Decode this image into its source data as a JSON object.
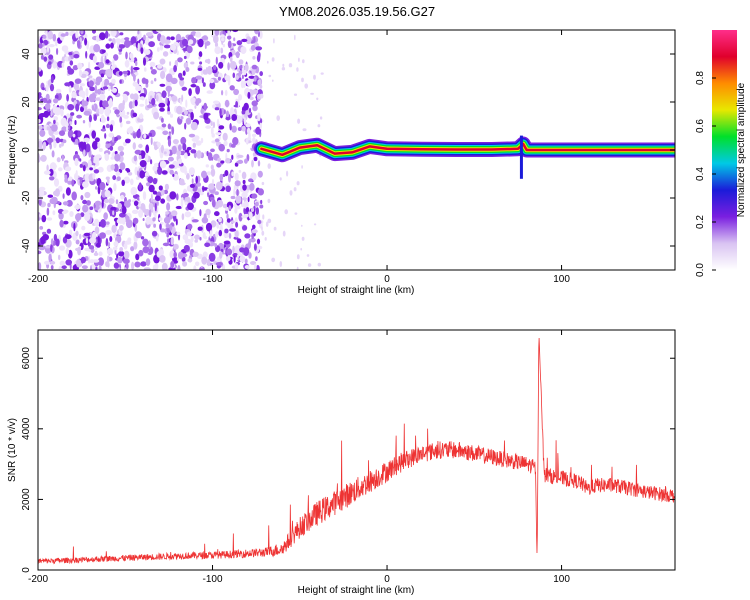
{
  "title": "YM08.2026.035.19.56.G27",
  "chart_data": [
    {
      "type": "heatmap",
      "xlabel": "Height of straight line (km)",
      "ylabel": "Frequency (Hz)",
      "xlim": [
        -200,
        165
      ],
      "ylim": [
        -50,
        50
      ],
      "x_ticks": [
        -200,
        -100,
        0,
        100
      ],
      "y_ticks": [
        -40,
        -20,
        0,
        20,
        40
      ],
      "colorbar": {
        "label": "Normalized spectral amplitude",
        "range": [
          0,
          1
        ],
        "ticks": [
          0.0,
          0.2,
          0.4,
          0.6,
          0.8
        ],
        "tick_labels": [
          "0.0",
          "0.2",
          "0.4",
          "0.6",
          "0.8"
        ],
        "colormap": [
          "#ffffff",
          "#d9c3f2",
          "#7a1fe0",
          "#1b1bd9",
          "#00c9e6",
          "#00e02a",
          "#e8e800",
          "#ff8c00",
          "#e0002c",
          "#ff2e8a"
        ]
      },
      "noise_region_x": [
        -200,
        -72
      ],
      "signal_trace": [
        {
          "x": -72,
          "f": 0.5
        },
        {
          "x": -60,
          "f": -2.0
        },
        {
          "x": -50,
          "f": 1.0
        },
        {
          "x": -40,
          "f": 2.0
        },
        {
          "x": -30,
          "f": -1.5
        },
        {
          "x": -20,
          "f": -1.0
        },
        {
          "x": -10,
          "f": 1.5
        },
        {
          "x": 0,
          "f": 0.5
        },
        {
          "x": 20,
          "f": 0.3
        },
        {
          "x": 40,
          "f": 0.2
        },
        {
          "x": 60,
          "f": 0.2
        },
        {
          "x": 75,
          "f": 0.5
        },
        {
          "x": 78,
          "f": 2.5
        },
        {
          "x": 80,
          "f": 0.0
        },
        {
          "x": 165,
          "f": 0.0
        }
      ]
    },
    {
      "type": "line",
      "xlabel": "Height of straight line (km)",
      "ylabel": "SNR (10 * v/v)",
      "xlim": [
        -200,
        165
      ],
      "ylim": [
        0,
        6800
      ],
      "x_ticks": [
        -200,
        -100,
        0,
        100
      ],
      "y_ticks": [
        0,
        2000,
        4000,
        6000
      ],
      "color": "#ee3333",
      "series": [
        {
          "x": [
            -200,
            -180,
            -160,
            -140,
            -120,
            -100,
            -90,
            -80,
            -70,
            -60,
            -55,
            -50,
            -40,
            -30,
            -20,
            -10,
            0,
            10,
            20,
            30,
            40,
            50,
            60,
            70,
            80,
            85,
            86,
            87,
            90,
            100,
            110,
            115,
            120,
            130,
            140,
            150,
            165
          ],
          "y": [
            250,
            280,
            320,
            360,
            400,
            420,
            440,
            470,
            500,
            600,
            900,
            1200,
            1600,
            1900,
            2200,
            2500,
            2800,
            3100,
            3300,
            3400,
            3400,
            3300,
            3200,
            3100,
            3000,
            2900,
            200,
            6800,
            2700,
            2600,
            2500,
            2300,
            2400,
            2400,
            2300,
            2200,
            2100
          ],
          "noise_amplitude": [
            150,
            160,
            170,
            180,
            190,
            200,
            220,
            240,
            260,
            400,
            500,
            600,
            700,
            700,
            700,
            650,
            600,
            550,
            500,
            500,
            500,
            480,
            460,
            450,
            440,
            440,
            100,
            100,
            440,
            430,
            420,
            420,
            420,
            420,
            410,
            400,
            400
          ]
        }
      ]
    }
  ]
}
